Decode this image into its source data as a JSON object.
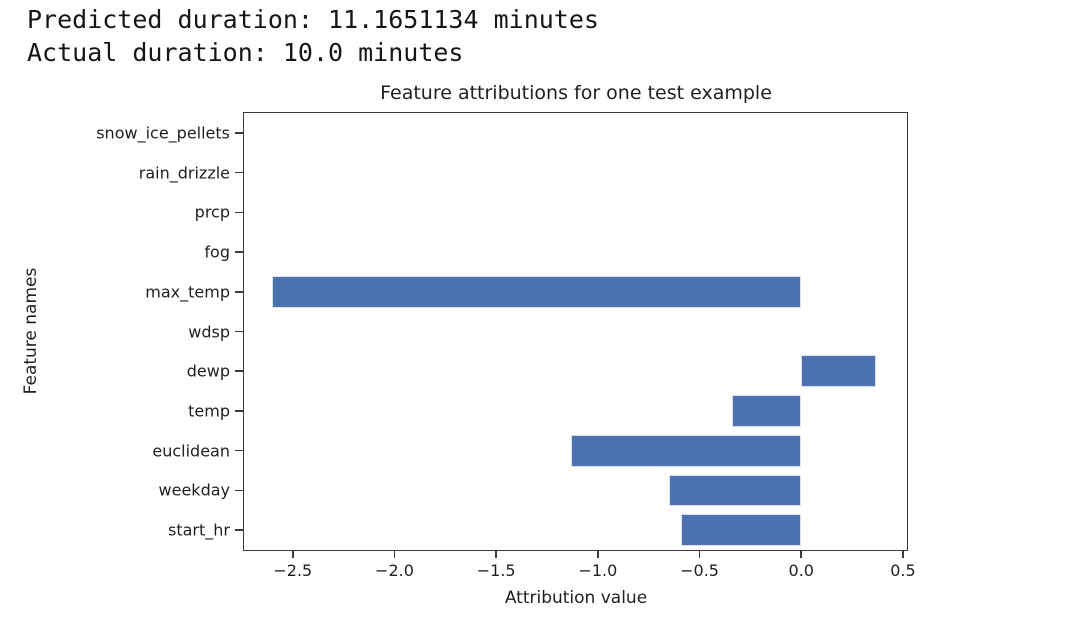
{
  "console": {
    "predicted_line": "Predicted duration: 11.1651134 minutes",
    "actual_line": "Actual duration: 10.0 minutes"
  },
  "chart_data": {
    "type": "bar",
    "orientation": "horizontal",
    "title": "Feature attributions for one test example",
    "xlabel": "Attribution value",
    "ylabel": "Feature names",
    "categories_top_to_bottom": [
      "snow_ice_pellets",
      "rain_drizzle",
      "prcp",
      "fog",
      "max_temp",
      "wdsp",
      "dewp",
      "temp",
      "euclidean",
      "weekday",
      "start_hr"
    ],
    "values_top_to_bottom": [
      0,
      0,
      0,
      0,
      -2.6,
      0,
      0.37,
      -0.34,
      -1.13,
      -0.65,
      -0.59
    ],
    "xlim": [
      -2.74,
      0.52
    ],
    "xticks": [
      {
        "value": -2.5,
        "label": "−2.5"
      },
      {
        "value": -2.0,
        "label": "−2.0"
      },
      {
        "value": -1.5,
        "label": "−1.5"
      },
      {
        "value": -1.0,
        "label": "−1.0"
      },
      {
        "value": -0.5,
        "label": "−0.5"
      },
      {
        "value": 0.0,
        "label": "0.0"
      },
      {
        "value": 0.5,
        "label": "0.5"
      }
    ],
    "grid": false,
    "bar_thickness_fraction": 0.8,
    "colors": {
      "bar": "#4C72B0",
      "bar_edge": "#d9e1ee",
      "spine": "#3a3a3a",
      "text": "#1f1f1f"
    }
  }
}
